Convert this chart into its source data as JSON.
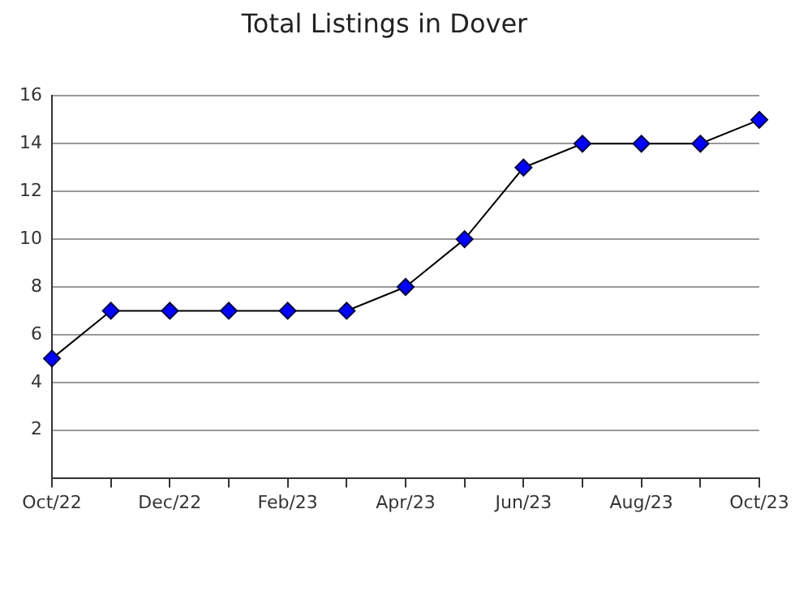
{
  "chart_data": {
    "type": "line",
    "title": "Total Listings in Dover",
    "categories": [
      "Oct/22",
      null,
      "Dec/22",
      null,
      "Feb/23",
      null,
      "Apr/23",
      null,
      "Jun/23",
      null,
      "Aug/23",
      null,
      "Oct/23"
    ],
    "series": [
      {
        "color": "#0000ff",
        "values": [
          5,
          7,
          7,
          7,
          7,
          7,
          8,
          10,
          13,
          14,
          14,
          14,
          15
        ]
      }
    ],
    "ylim": [
      0,
      16
    ],
    "yticks": [
      2,
      4,
      6,
      8,
      10,
      12,
      14,
      16
    ],
    "grid": "y",
    "legend": false,
    "marker": "diamond",
    "line_style": "solid"
  }
}
